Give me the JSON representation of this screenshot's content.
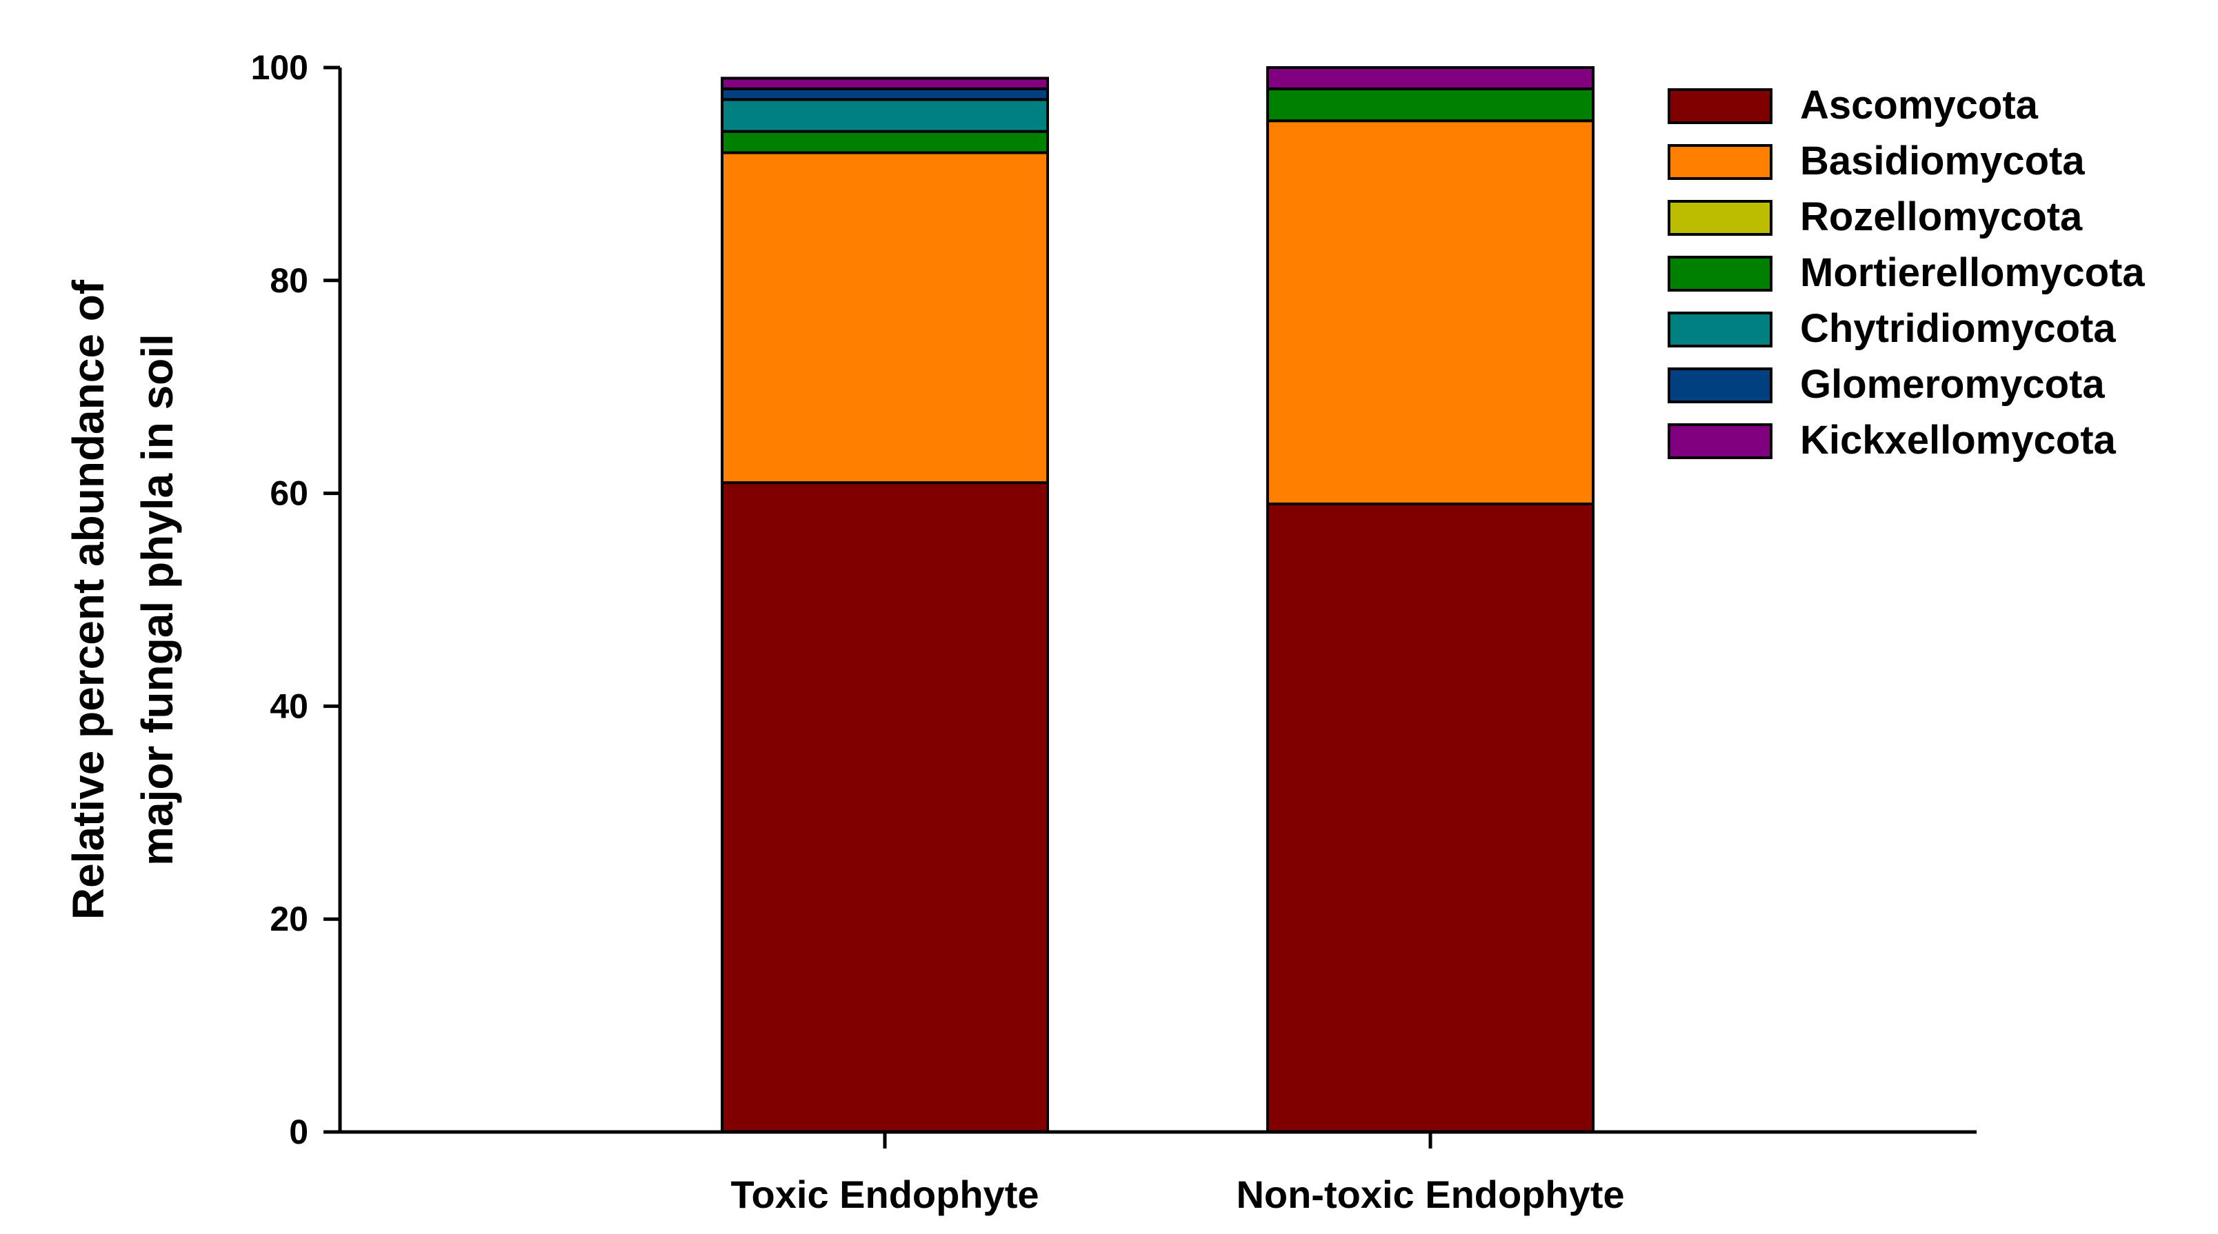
{
  "chart_data": {
    "type": "bar",
    "stacked": true,
    "categories": [
      "Toxic Endophyte",
      "Non-toxic Endophyte"
    ],
    "ylabel_lines": [
      "Relative percent abundance of",
      "major fungal phyla in soil"
    ],
    "ylim": [
      0,
      100
    ],
    "yticks": [
      0,
      20,
      40,
      60,
      80,
      100
    ],
    "legend_position": "top-right",
    "grid": false,
    "series": [
      {
        "name": "Ascomycota",
        "color": "#800000",
        "values": [
          61,
          59
        ]
      },
      {
        "name": "Basidiomycota",
        "color": "#FF8000",
        "values": [
          31,
          36
        ]
      },
      {
        "name": "Rozellomycota",
        "color": "#BDBD00",
        "values": [
          0,
          0
        ]
      },
      {
        "name": "Mortierellomycota",
        "color": "#008000",
        "values": [
          2,
          3
        ]
      },
      {
        "name": "Chytridiomycota",
        "color": "#008080",
        "values": [
          3,
          0
        ]
      },
      {
        "name": "Glomeromycota",
        "color": "#004080",
        "values": [
          1,
          0
        ]
      },
      {
        "name": "Kickxellomycota",
        "color": "#800080",
        "values": [
          1,
          2
        ]
      }
    ]
  }
}
